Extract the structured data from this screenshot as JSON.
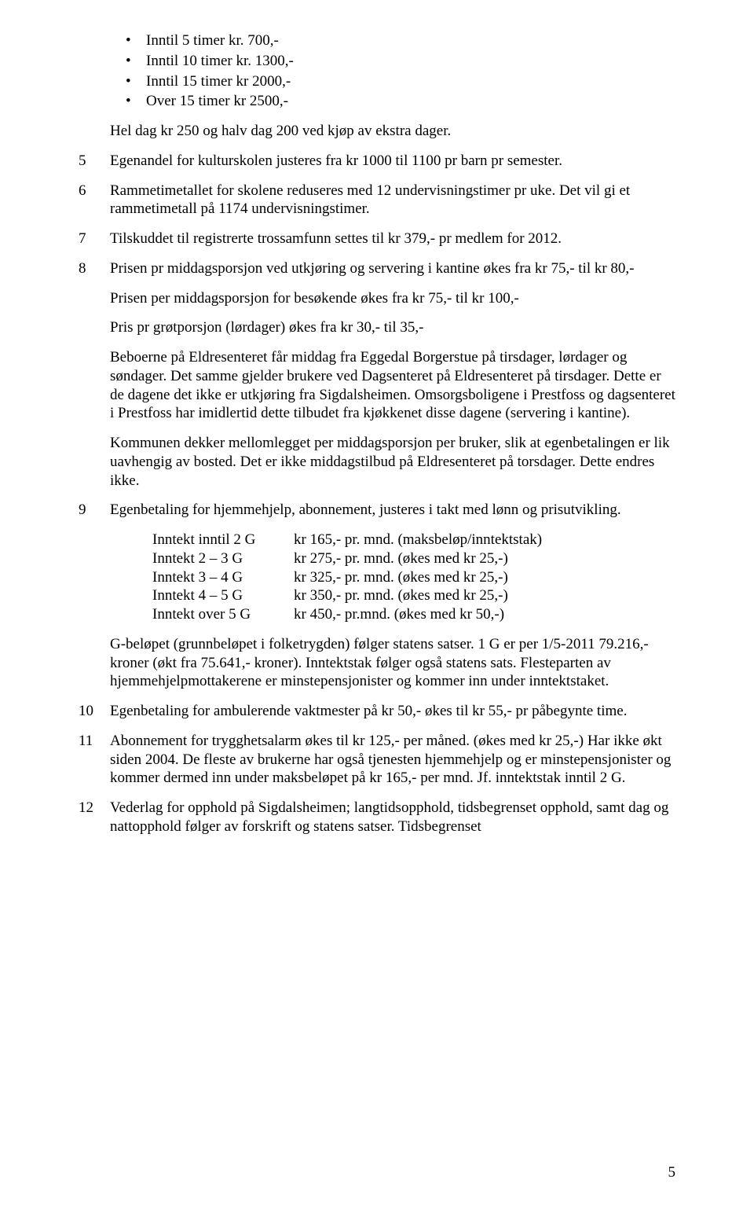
{
  "bullets": [
    "Inntil 5 timer kr. 700,-",
    "Inntil 10 timer kr. 1300,-",
    "Inntil 15 timer kr 2000,-",
    "Over 15 timer kr 2500,-"
  ],
  "intro_para": "Hel dag kr 250 og halv dag 200 ved kjøp av ekstra dager.",
  "items": {
    "5": {
      "num": "5",
      "p1": "Egenandel for kulturskolen justeres fra kr 1000 til 1100 pr barn pr semester."
    },
    "6": {
      "num": "6",
      "p1": "Rammetimetallet for skolene reduseres med 12 undervisningstimer pr uke.  Det vil gi et rammetimetall på 1174 undervisningstimer."
    },
    "7": {
      "num": "7",
      "p1": "Tilskuddet til registrerte trossamfunn settes til kr 379,- pr medlem for 2012."
    },
    "8": {
      "num": "8",
      "p1": "Prisen pr middagsporsjon ved utkjøring og servering i kantine økes fra kr 75,- til kr 80,-",
      "p2": "Prisen per middagsporsjon for besøkende økes fra kr 75,-  til kr 100,-",
      "p3": "Pris pr grøtporsjon (lørdager) økes fra kr 30,-  til 35,-",
      "p4": "Beboerne på Eldresenteret får middag fra Eggedal Borgerstue på tirsdager, lørdager og søndager. Det samme gjelder brukere ved Dagsenteret på Eldresenteret på tirsdager. Dette er de dagene det ikke er utkjøring fra Sigdalsheimen. Omsorgsboligene i Prestfoss og dagsenteret i Prestfoss har imidlertid dette tilbudet fra kjøkkenet disse dagene (servering i kantine).",
      "p5": "Kommunen dekker mellomlegget per middagsporsjon per bruker,  slik at egenbetalingen er lik uavhengig av bosted. Det er ikke middagstilbud på Eldresenteret på torsdager. Dette endres ikke."
    },
    "9": {
      "num": "9",
      "p1": "Egenbetaling for hjemmehjelp, abonnement, justeres i takt med lønn og prisutvikling.",
      "table": [
        {
          "c1": "Inntekt inntil 2 G",
          "c2": "kr 165,- pr. mnd. (maksbeløp/inntektstak)"
        },
        {
          "c1": "Inntekt 2 – 3 G",
          "c2": "kr 275,- pr. mnd. (økes med kr 25,-)"
        },
        {
          "c1": "Inntekt 3 – 4 G",
          "c2": "kr 325,- pr. mnd. (økes med kr 25,-)"
        },
        {
          "c1": "Inntekt 4 – 5 G",
          "c2": "kr 350,- pr. mnd. (økes med kr 25,-)"
        },
        {
          "c1": "Inntekt over 5 G",
          "c2": "kr 450,- pr.mnd. (økes med kr 50,-)"
        }
      ],
      "p2": "G-beløpet (grunnbeløpet i folketrygden) følger statens satser. 1 G er per 1/5-2011 79.216,- kroner (økt fra 75.641,- kroner). Inntektstak følger også statens sats. Flesteparten av hjemmehjelpmottakerene er minstepensjonister og kommer inn under inntektstaket."
    },
    "10": {
      "num": "10",
      "p1": "Egenbetaling for ambulerende vaktmester på kr 50,- økes til kr 55,- pr påbegynte time."
    },
    "11": {
      "num": "11",
      "p1": "Abonnement for trygghetsalarm økes til kr 125,- per måned. (økes med kr 25,-) Har ikke økt siden 2004. De fleste av brukerne har også tjenesten hjemmehjelp og er minstepensjonister og kommer dermed inn under maksbeløpet på kr 165,- per mnd. Jf. inntektstak inntil 2 G."
    },
    "12": {
      "num": "12",
      "p1": "Vederlag for opphold på Sigdalsheimen; langtidsopphold, tidsbegrenset opphold, samt dag og nattopphold følger av forskrift og statens satser. Tidsbegrenset"
    }
  },
  "page_number": "5"
}
